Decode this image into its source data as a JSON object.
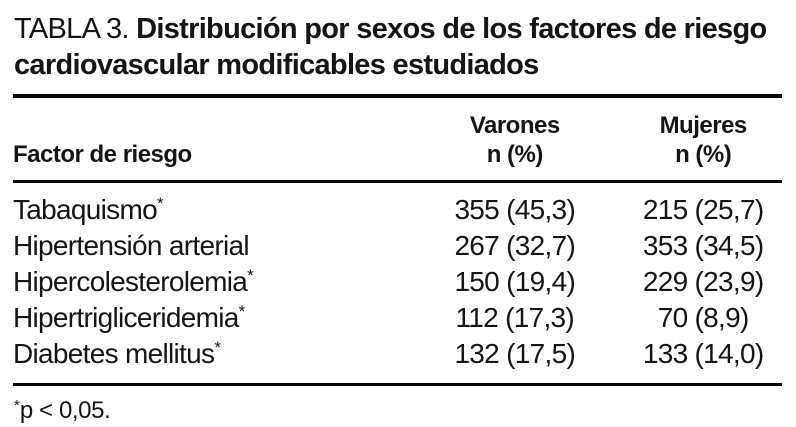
{
  "title": {
    "label": "TABLA 3.",
    "text": "Distribución por sexos de los factores de riesgo cardiovascular modificables estudiados"
  },
  "table": {
    "headers": {
      "factor": "Factor de riesgo",
      "varones": "Varones",
      "mujeres": "Mujeres",
      "unit": "n (%)"
    },
    "rows": [
      {
        "factor": "Tabaquismo",
        "marker": "*",
        "varones": "355 (45,3)",
        "mujeres": "215 (25,7)"
      },
      {
        "factor": "Hipertensión arterial",
        "marker": "",
        "varones": "267 (32,7)",
        "mujeres": "353 (34,5)"
      },
      {
        "factor": "Hipercolesterolemia",
        "marker": "*",
        "varones": "150 (19,4)",
        "mujeres": "229 (23,9)"
      },
      {
        "factor": "Hipertrigliceridemia",
        "marker": "*",
        "varones": "112 (17,3)",
        "mujeres": "70 (8,9)"
      },
      {
        "factor": "Diabetes mellitus",
        "marker": "*",
        "varones": "132 (17,5)",
        "mujeres": "133 (14,0)"
      }
    ]
  },
  "footnote": {
    "marker": "*",
    "text": "p < 0,05."
  },
  "colors": {
    "background": "#ffffff",
    "text": "#151515",
    "rule": "#060606"
  }
}
